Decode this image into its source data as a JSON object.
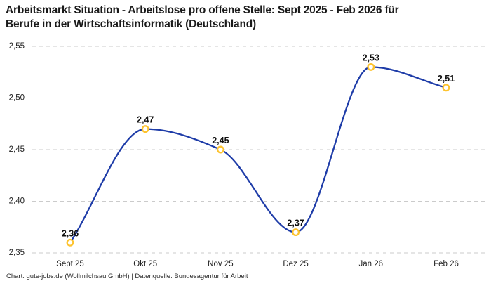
{
  "header": {
    "title_line1": "Arbeitsmarkt Situation - Arbeitslose pro offene Stelle: Sept 2025 - Feb 2026 für",
    "title_line2": "Berufe in der Wirtschaftsinformatik (Deutschland)"
  },
  "footer": {
    "credit": "Chart: gute-jobs.de (Wollmilchsau GmbH) | Datenquelle: Bundesagentur für Arbeit"
  },
  "colors": {
    "line": "#1e3ca8",
    "marker_stroke": "#fdc32f",
    "marker_fill": "#ffffff",
    "grid": "#cbcbcb",
    "axis_text": "#222222",
    "point_label_text": "#111111",
    "title_text": "#1a1a1a"
  },
  "chart_data": {
    "type": "line",
    "title": "Arbeitsmarkt Situation - Arbeitslose pro offene Stelle: Sept 2025 - Feb 2026 für Berufe in der Wirtschaftsinformatik (Deutschland)",
    "categories": [
      "Sept 25",
      "Okt 25",
      "Nov 25",
      "Dez 25",
      "Jan 26",
      "Feb 26"
    ],
    "values": [
      2.36,
      2.47,
      2.45,
      2.37,
      2.53,
      2.51
    ],
    "point_labels": [
      "2,36",
      "2,47",
      "2,45",
      "2,37",
      "2,53",
      "2,51"
    ],
    "series_name": "Arbeitslose pro offene Stelle",
    "xlabel": "",
    "ylabel": "",
    "ylim": [
      2.35,
      2.55
    ],
    "y_ticks": [
      2.55,
      2.5,
      2.45,
      2.4,
      2.35
    ],
    "y_tick_labels": [
      "2,55",
      "2,50",
      "2,45",
      "2,40",
      "2,35"
    ],
    "grid": "horizontal-dashed",
    "legend": "none",
    "curve": "monotone",
    "marker_style": "open-circle",
    "decimal_separator": ","
  }
}
